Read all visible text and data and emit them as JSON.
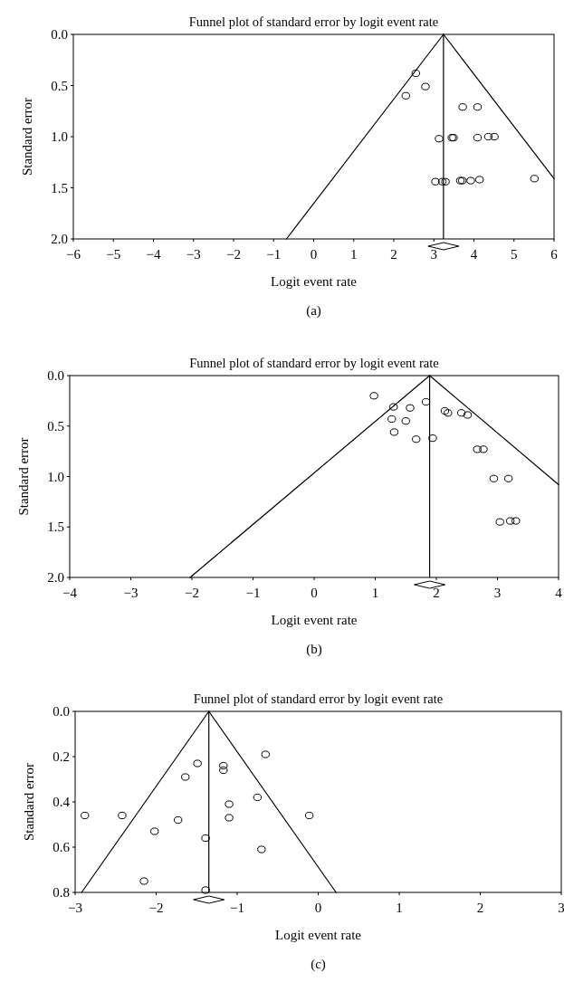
{
  "chart_data": [
    {
      "type": "scatter",
      "title": "Funnel plot of standard error by logit event rate",
      "xlabel": "Logit event rate",
      "ylabel": "Standard error",
      "annotations": [
        "(a)"
      ],
      "xlim": [
        -6,
        6
      ],
      "ylim": [
        2,
        0
      ],
      "xticks": [
        -6,
        -5,
        -4,
        -3,
        -2,
        -1,
        0,
        1,
        2,
        3,
        4,
        5,
        6
      ],
      "yticks": [
        {
          "value": 0,
          "label": "0.0"
        },
        {
          "value": 0.5,
          "label": "0.5"
        },
        {
          "value": 1,
          "label": "1.0"
        },
        {
          "value": 1.5,
          "label": "1.5"
        },
        {
          "value": 2,
          "label": "2.0"
        }
      ],
      "grid": false,
      "ref_lines": [
        {
          "axis": "x",
          "value": 3.24,
          "color": "#000000"
        }
      ],
      "series": [
        {
          "color": "#000000",
          "marker": "circle",
          "x": [
            2.55,
            2.79,
            2.3,
            3.72,
            4.09,
            3.13,
            3.45,
            3.49,
            4.09,
            4.36,
            4.51,
            3.04,
            3.21,
            3.29,
            3.66,
            3.71,
            3.92,
            4.14,
            5.51
          ],
          "values": [
            0.38,
            0.51,
            0.6,
            0.71,
            0.71,
            1.02,
            1.01,
            1.01,
            1.01,
            1.0,
            1.0,
            1.44,
            1.44,
            1.44,
            1.43,
            1.43,
            1.43,
            1.42,
            1.41
          ]
        },
        {
          "type": "line",
          "marker": "none",
          "color": "#000000",
          "x": [
            3.24,
            -0.68
          ],
          "values": [
            0,
            2
          ]
        },
        {
          "type": "line",
          "marker": "none",
          "color": "#000000",
          "x": [
            3.24,
            6
          ],
          "values": [
            0,
            1.41
          ]
        }
      ]
    },
    {
      "type": "scatter",
      "title": "Funnel plot of standard error by logit event rate",
      "xlabel": "Logit event rate",
      "ylabel": "Standard error",
      "annotations": [
        "(b)"
      ],
      "xlim": [
        -4,
        4
      ],
      "ylim": [
        2,
        0
      ],
      "xticks": [
        -4,
        -3,
        -2,
        -1,
        0,
        1,
        2,
        3,
        4
      ],
      "yticks": [
        {
          "value": 0,
          "label": "0.0"
        },
        {
          "value": 0.5,
          "label": "0.5"
        },
        {
          "value": 1,
          "label": "1.0"
        },
        {
          "value": 1.5,
          "label": "1.5"
        },
        {
          "value": 2,
          "label": "2.0"
        }
      ],
      "grid": false,
      "ref_lines": [
        {
          "axis": "x",
          "value": 1.89,
          "color": "#000000"
        }
      ],
      "series": [
        {
          "color": "#000000",
          "marker": "circle",
          "x": [
            0.98,
            1.3,
            1.57,
            1.83,
            1.27,
            1.5,
            1.31,
            1.67,
            1.94,
            2.14,
            2.19,
            2.41,
            2.51,
            2.67,
            2.77,
            2.94,
            3.18,
            3.04,
            3.21,
            3.3
          ],
          "values": [
            0.2,
            0.31,
            0.32,
            0.26,
            0.43,
            0.45,
            0.56,
            0.63,
            0.62,
            0.35,
            0.37,
            0.37,
            0.39,
            0.73,
            0.73,
            1.02,
            1.02,
            1.45,
            1.44,
            1.44
          ]
        },
        {
          "type": "line",
          "marker": "none",
          "color": "#000000",
          "x": [
            1.89,
            -2.03
          ],
          "values": [
            0,
            2
          ]
        },
        {
          "type": "line",
          "marker": "none",
          "color": "#000000",
          "x": [
            1.89,
            4
          ],
          "values": [
            0,
            1.08
          ]
        }
      ]
    },
    {
      "type": "scatter",
      "title": "Funnel plot of standard error by logit event rate",
      "xlabel": "Logit event rate",
      "ylabel": "Standard error",
      "annotations": [
        "(c)"
      ],
      "xlim": [
        -3,
        3
      ],
      "ylim": [
        0.8,
        0
      ],
      "xticks": [
        -3,
        -2,
        -1,
        0,
        1,
        2,
        3
      ],
      "yticks": [
        {
          "value": 0,
          "label": "0.0"
        },
        {
          "value": 0.2,
          "label": "0.2"
        },
        {
          "value": 0.4,
          "label": "0.4"
        },
        {
          "value": 0.6,
          "label": "0.6"
        },
        {
          "value": 0.8,
          "label": "0.8"
        }
      ],
      "grid": false,
      "ref_lines": [
        {
          "axis": "x",
          "value": -1.35,
          "color": "#000000"
        }
      ],
      "series": [
        {
          "color": "#000000",
          "marker": "circle",
          "x": [
            -2.88,
            -2.42,
            -1.49,
            -1.64,
            -1.17,
            -1.17,
            -0.65,
            -0.75,
            -1.1,
            -1.1,
            -0.11,
            -1.73,
            -2.02,
            -1.39,
            -0.7,
            -2.15,
            -1.39
          ],
          "values": [
            0.46,
            0.46,
            0.23,
            0.29,
            0.24,
            0.26,
            0.19,
            0.38,
            0.41,
            0.47,
            0.46,
            0.48,
            0.53,
            0.56,
            0.61,
            0.75,
            0.79
          ]
        },
        {
          "type": "line",
          "marker": "none",
          "color": "#000000",
          "x": [
            -1.35,
            -2.92
          ],
          "values": [
            0,
            0.8
          ]
        },
        {
          "type": "line",
          "marker": "none",
          "color": "#000000",
          "x": [
            -1.35,
            0.22
          ],
          "values": [
            0,
            0.8
          ]
        }
      ]
    }
  ]
}
